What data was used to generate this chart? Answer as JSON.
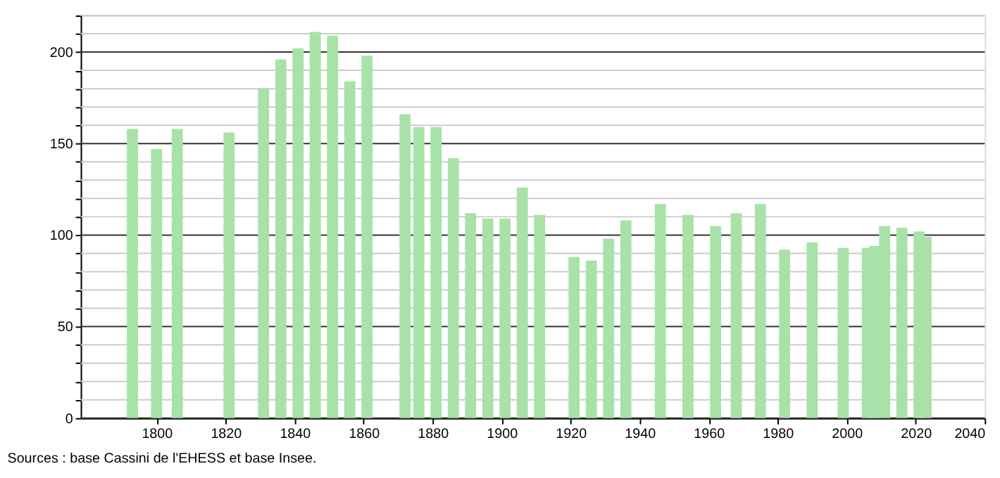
{
  "chart_data": {
    "type": "bar",
    "x": [
      1793,
      1800,
      1806,
      1821,
      1831,
      1836,
      1841,
      1846,
      1851,
      1856,
      1861,
      1872,
      1876,
      1881,
      1886,
      1891,
      1896,
      1901,
      1906,
      1911,
      1921,
      1926,
      1931,
      1936,
      1946,
      1954,
      1962,
      1968,
      1975,
      1982,
      1990,
      1999,
      2006,
      2008,
      2011,
      2016,
      2021,
      2023
    ],
    "values": [
      158,
      147,
      158,
      156,
      180,
      196,
      202,
      211,
      209,
      184,
      198,
      166,
      159,
      159,
      142,
      112,
      109,
      109,
      126,
      111,
      88,
      86,
      98,
      108,
      117,
      111,
      105,
      112,
      117,
      92,
      96,
      93,
      93,
      94,
      105,
      104,
      102,
      99
    ],
    "color": "#a8e2a8",
    "xlim": [
      1778,
      2040
    ],
    "xticks": [
      1800,
      1820,
      1840,
      1860,
      1880,
      1900,
      1920,
      1940,
      1960,
      1980,
      2000,
      2020,
      2040
    ],
    "ylim": [
      0,
      220
    ],
    "yticks": [
      0,
      {
        "value": 10,
        "label": null
      },
      {
        "value": 20,
        "label": null
      },
      {
        "value": 30,
        "label": null
      },
      {
        "value": 40,
        "label": null
      },
      50,
      {
        "value": 60,
        "label": null
      },
      {
        "value": 70,
        "label": null
      },
      {
        "value": 80,
        "label": null
      },
      {
        "value": 90,
        "label": null
      },
      100,
      {
        "value": 110,
        "label": null
      },
      {
        "value": 120,
        "label": null
      },
      {
        "value": 130,
        "label": null
      },
      {
        "value": 140,
        "label": null
      },
      150,
      {
        "value": 160,
        "label": null
      },
      {
        "value": 170,
        "label": null
      },
      {
        "value": 180,
        "label": null
      },
      {
        "value": 190,
        "label": null
      },
      200,
      {
        "value": 210,
        "label": null
      },
      {
        "value": 220,
        "label": null
      }
    ],
    "grid": "y",
    "annotations": [
      "Sources : base Cassini de l'EHESS et base Insee."
    ]
  }
}
